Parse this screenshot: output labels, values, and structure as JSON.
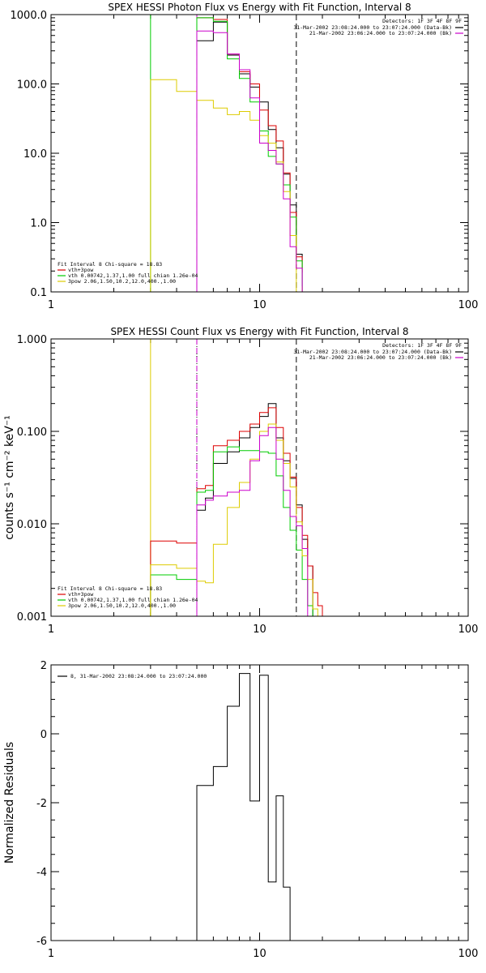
{
  "chart_data": [
    {
      "type": "line",
      "title": "SPEX HESSI Photon Flux vs Energy with Fit Function, Interval 8",
      "xscale": "log",
      "yscale": "log",
      "xlim": [
        1,
        100
      ],
      "ylim": [
        0.1,
        1000
      ],
      "x_ticks": [
        "1",
        "10",
        "100"
      ],
      "y_ticks": [
        "0.1",
        "1.0",
        "10.0",
        "100.0",
        "1000.0"
      ],
      "detectors_label": "Detectors: 1F 3F 4F 8F 9F",
      "time_labels": [
        {
          "text": "31-Mar-2002 23:08:24.000 to 23:07:24.000 (Data-Bk)",
          "color": "#000000"
        },
        {
          "text": "21-Mar-2002 23:06:24.000 to 23:07:24.000 (Bk)",
          "color": "#cc00cc"
        }
      ],
      "fit_info": "Fit Interval 8   Chi-square = 18.83",
      "legend": [
        {
          "text": "vth+3pow",
          "color": "#dd0000"
        },
        {
          "text": "vth 0.00742,1.37,1.00  full chian 1.26e-04",
          "color": "#00cc00"
        },
        {
          "text": "3pow 2.06,1.50,10.2,12.0,400.,1.00",
          "color": "#ddcc00"
        }
      ],
      "vlines": [
        {
          "x": 3,
          "color": "#00cc00",
          "style": "solid"
        },
        {
          "x": 5,
          "color": "#00cc00",
          "style": "solid"
        },
        {
          "x": 5,
          "color": "#cc00cc",
          "style": "dashed"
        },
        {
          "x": 15,
          "color": "#000000",
          "style": "dashed"
        }
      ],
      "bin_edges": [
        3,
        4,
        5,
        6,
        7,
        8,
        9,
        10,
        11,
        12,
        13,
        14,
        15,
        16
      ],
      "series": [
        {
          "color": "#000000",
          "values": [
            null,
            null,
            420,
            780,
            260,
            140,
            90,
            55,
            22,
            12,
            5,
            1.8,
            0.35,
            null
          ]
        },
        {
          "color": "#dd0000",
          "values": [
            null,
            null,
            900,
            850,
            270,
            150,
            100,
            42,
            25,
            15,
            5.2,
            1.4,
            0.32,
            0.19
          ]
        },
        {
          "color": "#00cc00",
          "values": [
            null,
            null,
            900,
            800,
            230,
            120,
            55,
            21,
            9,
            7,
            3.5,
            1.2,
            0.28,
            null
          ]
        },
        {
          "color": "#ddcc00",
          "values": [
            115,
            78,
            58,
            45,
            36,
            40,
            30,
            18,
            14,
            7.5,
            2.8,
            0.65,
            0.1,
            0.12
          ]
        },
        {
          "color": "#cc00cc",
          "values": [
            null,
            null,
            580,
            550,
            270,
            160,
            63,
            14,
            11,
            7,
            2.2,
            0.45,
            0.22,
            null
          ]
        }
      ]
    },
    {
      "type": "line",
      "title": "SPEX HESSI Count Flux vs Energy with Fit Function, Interval 8",
      "ylabel": "counts s⁻¹ cm⁻² keV⁻¹",
      "xscale": "log",
      "yscale": "log",
      "xlim": [
        1,
        100
      ],
      "ylim": [
        0.001,
        1
      ],
      "x_ticks": [
        "1",
        "10",
        "100"
      ],
      "y_ticks": [
        "0.001",
        "0.010",
        "0.100",
        "1.000"
      ],
      "detectors_label": "Detectors: 1F 3F 4F 8F 9F",
      "time_labels": [
        {
          "text": "31-Mar-2002 23:08:24.000 to 23:07:24.000 (Data-Bk)",
          "color": "#000000"
        },
        {
          "text": "21-Mar-2002 23:06:24.000 to 23:07:24.000 (Bk)",
          "color": "#cc00cc"
        }
      ],
      "fit_info": "Fit Interval 8   Chi-square = 18.83",
      "legend": [
        {
          "text": "vth+3pow",
          "color": "#dd0000"
        },
        {
          "text": "vth 0.00742,1.37,1.00  full chian 1.26e-04",
          "color": "#00cc00"
        },
        {
          "text": "3pow 2.06,1.50,10.2,12.0,400.,1.00",
          "color": "#ddcc00"
        }
      ],
      "vlines": [
        {
          "x": 3,
          "color": "#ddcc00",
          "style": "solid"
        },
        {
          "x": 5,
          "color": "#000000",
          "style": "dotted"
        },
        {
          "x": 5,
          "color": "#cc00cc",
          "style": "dashed"
        },
        {
          "x": 15,
          "color": "#000000",
          "style": "dashed"
        }
      ],
      "bin_edges": [
        3,
        4,
        5,
        5.5,
        6,
        7,
        8,
        9,
        10,
        11,
        12,
        13,
        14,
        15,
        16,
        17,
        18,
        19,
        20
      ],
      "series": [
        {
          "color": "#000000",
          "values": [
            null,
            null,
            0.014,
            0.019,
            0.045,
            0.06,
            0.085,
            0.11,
            0.145,
            0.2,
            0.085,
            0.048,
            0.031,
            0.016,
            0.0068,
            0.0035,
            null,
            null
          ]
        },
        {
          "color": "#dd0000",
          "values": [
            0.0065,
            0.0062,
            0.024,
            0.026,
            0.07,
            0.08,
            0.1,
            0.12,
            0.16,
            0.18,
            0.11,
            0.058,
            0.032,
            0.015,
            0.0075,
            0.0035,
            0.0018,
            0.0013
          ]
        },
        {
          "color": "#00cc00",
          "values": [
            0.0028,
            0.0025,
            0.022,
            0.023,
            0.06,
            0.068,
            0.062,
            0.062,
            0.06,
            0.058,
            0.033,
            0.015,
            0.0085,
            0.0052,
            0.0025,
            0.0013,
            null,
            null
          ]
        },
        {
          "color": "#ddcc00",
          "values": [
            0.0036,
            0.0033,
            0.0024,
            0.0023,
            0.006,
            0.015,
            0.028,
            0.05,
            0.1,
            0.12,
            0.08,
            0.045,
            0.025,
            0.0105,
            0.0045,
            0.0025,
            0.0012,
            null
          ]
        },
        {
          "color": "#cc00cc",
          "values": [
            null,
            null,
            0.016,
            0.018,
            0.02,
            0.022,
            0.023,
            0.048,
            0.09,
            0.11,
            0.05,
            0.023,
            0.012,
            0.0095,
            0.0054,
            null,
            null,
            null
          ]
        }
      ]
    },
    {
      "type": "line",
      "ylabel": "Normalized Residuals",
      "xscale": "log",
      "yscale": "linear",
      "xlim": [
        1,
        100
      ],
      "ylim": [
        -6,
        2
      ],
      "x_ticks": [
        "1",
        "10",
        "100"
      ],
      "y_ticks": [
        "-6",
        "-4",
        "-2",
        "0",
        "2"
      ],
      "legend": [
        {
          "text": "8, 31-Mar-2002 23:08:24.000 to 23:07:24.000",
          "color": "#000000"
        }
      ],
      "bin_edges": [
        5,
        6,
        7,
        8,
        9,
        10,
        11,
        12,
        13,
        14,
        15
      ],
      "series": [
        {
          "color": "#000000",
          "values": [
            -1.5,
            -0.95,
            0.8,
            1.75,
            -1.95,
            1.7,
            -4.3,
            -1.8,
            -4.45,
            -6.0
          ]
        }
      ]
    }
  ]
}
